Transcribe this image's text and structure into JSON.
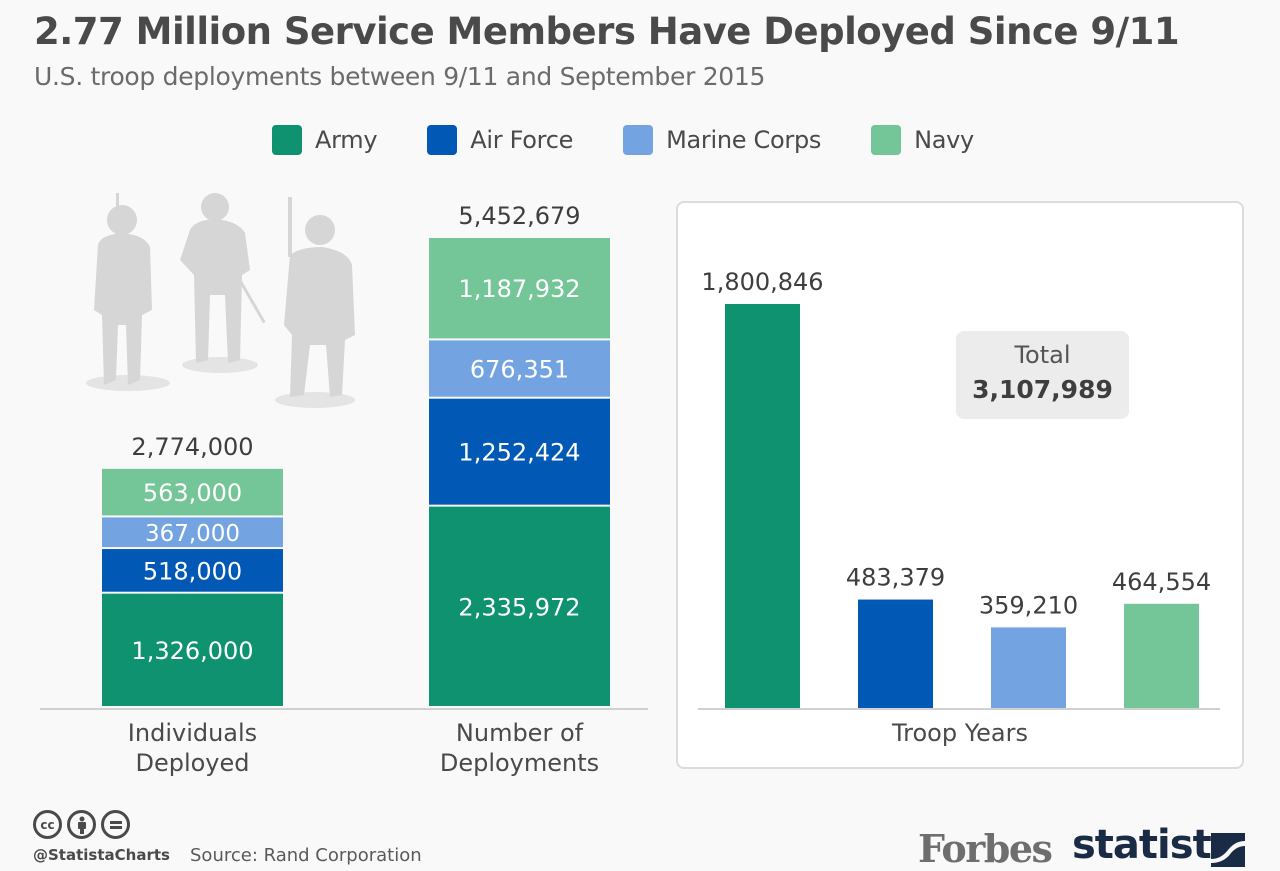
{
  "header": {
    "title": "2.77 Million Service Members Have Deployed Since 9/11",
    "subtitle": "U.S. troop deployments between 9/11 and September 2015"
  },
  "legend": [
    {
      "label": "Army",
      "color": "#0e9270"
    },
    {
      "label": "Air Force",
      "color": "#0158b5"
    },
    {
      "label": "Marine Corps",
      "color": "#73a3e0"
    },
    {
      "label": "Navy",
      "color": "#74c597"
    }
  ],
  "chart_data": [
    {
      "type": "bar",
      "stacked": true,
      "categories": [
        "Individuals Deployed",
        "Number of Deployments"
      ],
      "category_label_lines": [
        [
          "Individuals",
          "Deployed"
        ],
        [
          "Number of",
          "Deployments"
        ]
      ],
      "series": [
        {
          "name": "Army",
          "values": [
            1326000,
            2335972
          ],
          "labels": [
            "1,326,000",
            "2,335,972"
          ]
        },
        {
          "name": "Air Force",
          "values": [
            518000,
            1252424
          ],
          "labels": [
            "518,000",
            "1,252,424"
          ]
        },
        {
          "name": "Marine Corps",
          "values": [
            367000,
            676351
          ],
          "labels": [
            "367,000",
            "676,351"
          ]
        },
        {
          "name": "Navy",
          "values": [
            563000,
            1187932
          ],
          "labels": [
            "563,000",
            "1,187,932"
          ]
        }
      ],
      "totals": [
        2774000,
        5452679
      ],
      "total_labels": [
        "2,774,000",
        "5,452,679"
      ],
      "title": "",
      "xlabel": "",
      "ylabel": "",
      "grid": false
    },
    {
      "type": "bar",
      "categories": [
        "Army",
        "Air Force",
        "Marine Corps",
        "Navy"
      ],
      "values": [
        1800846,
        483379,
        359210,
        464554
      ],
      "value_labels": [
        "1,800,846",
        "483,379",
        "359,210",
        "464,554"
      ],
      "xlabel": "Troop Years",
      "annotation": {
        "label": "Total",
        "value": "3,107,989"
      },
      "grid": false
    }
  ],
  "annotation": {
    "label": "Total",
    "value": "3,107,989"
  },
  "footer": {
    "license_icons": [
      "creative-commons-icon",
      "attribution-icon",
      "no-derivatives-icon"
    ],
    "cc_text": "cc",
    "handle": "@StatistaCharts",
    "source": "Source: Rand Corporation",
    "forbes": "Forbes",
    "statista": "statista"
  }
}
